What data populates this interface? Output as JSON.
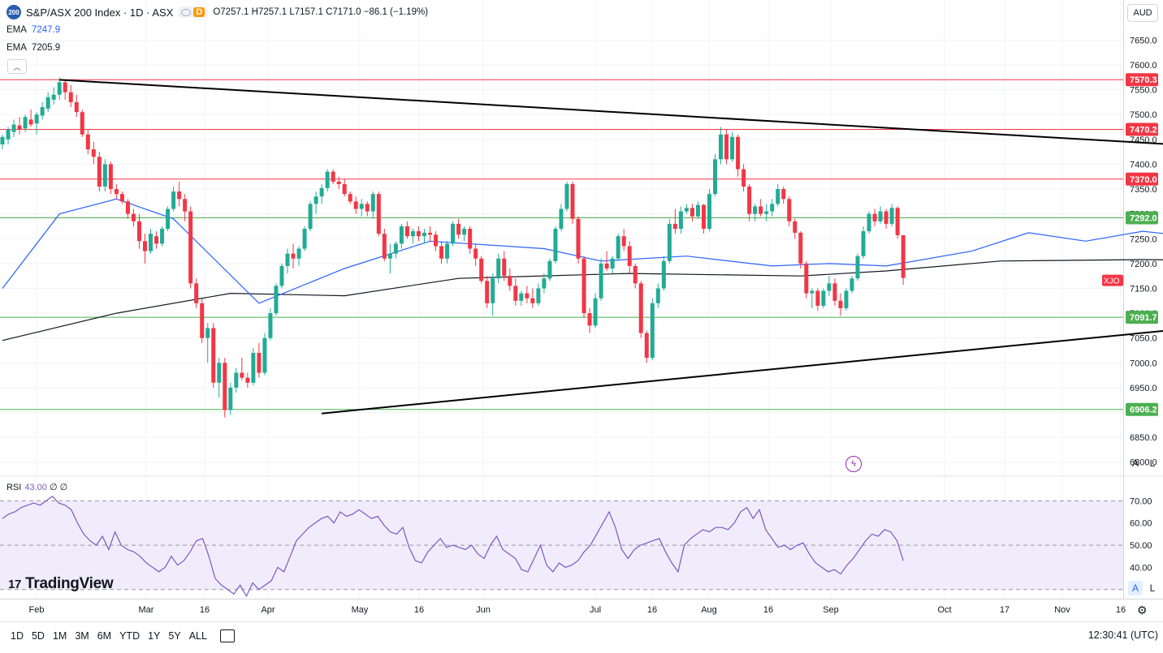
{
  "header": {
    "symbol_badge": "200",
    "title": "S&P/ASX 200 Index · 1D · ASX",
    "mode_badge": "D",
    "ohlc": "O7257.1 H7257.1 L7157.1 C7171.0 −86.1 (−1.19%)",
    "ema1_label": "EMA",
    "ema1_value": "7247.9",
    "ema2_label": "EMA",
    "ema2_value": "7205.9",
    "currency": "AUD"
  },
  "rsi": {
    "label": "RSI",
    "value": "43.00",
    "extra": "∅ ∅",
    "ticks": [
      "70.00",
      "60.00",
      "50.00",
      "40.00"
    ]
  },
  "scale_buttons": {
    "main_a": "A",
    "main_l": "L",
    "rsi_a": "A",
    "rsi_l": "L"
  },
  "ranges": [
    "1D",
    "5D",
    "1M",
    "3M",
    "6M",
    "YTD",
    "1Y",
    "5Y",
    "ALL"
  ],
  "clock": "12:30:41 (UTC)",
  "logo": "TradingView",
  "colors": {
    "up": "#22ab94",
    "down": "#f23645",
    "ema_fast": "#2962ff",
    "ema_slow": "#131722",
    "rsi": "#7e57c2",
    "support": "#4caf50",
    "resistance": "#f23645"
  },
  "chart_data": {
    "type": "candlestick",
    "symbol_tag": "XJO",
    "y_range": [
      6775,
      7685
    ],
    "y_ticks": [
      7650,
      7600,
      7550,
      7500,
      7450,
      7400,
      7350,
      7300,
      7250,
      7200,
      7150,
      7100,
      7050,
      7000,
      6950,
      6900,
      6850,
      6800
    ],
    "x_labels": [
      "Feb",
      "Mar",
      "16",
      "Apr",
      "May",
      "16",
      "Jun",
      "Jul",
      "16",
      "Aug",
      "16",
      "Sep",
      "Oct",
      "17",
      "Nov",
      "16"
    ],
    "horizontal_levels": [
      {
        "value": 7570.3,
        "label": "7570.3",
        "kind": "resistance"
      },
      {
        "value": 7470.2,
        "label": "7470.2",
        "kind": "resistance"
      },
      {
        "value": 7370.0,
        "label": "7370.0",
        "kind": "resistance"
      },
      {
        "value": 7292.0,
        "label": "7292.0",
        "kind": "support"
      },
      {
        "value": 7091.7,
        "label": "7091.7",
        "kind": "support"
      },
      {
        "value": 6906.2,
        "label": "6906.2",
        "kind": "support"
      }
    ],
    "trendlines": [
      {
        "name": "upper",
        "points": [
          [
            10,
            7570
          ],
          [
            232,
            7422
          ]
        ]
      },
      {
        "name": "lower",
        "points": [
          [
            56,
            6898
          ],
          [
            238,
            7103
          ]
        ]
      }
    ],
    "ema_fast": [
      [
        0,
        7150
      ],
      [
        10,
        7300
      ],
      [
        20,
        7330
      ],
      [
        30,
        7290
      ],
      [
        45,
        7120
      ],
      [
        60,
        7190
      ],
      [
        75,
        7245
      ],
      [
        95,
        7230
      ],
      [
        105,
        7205
      ],
      [
        120,
        7215
      ],
      [
        135,
        7195
      ],
      [
        145,
        7200
      ],
      [
        155,
        7195
      ],
      [
        170,
        7225
      ],
      [
        180,
        7262
      ],
      [
        190,
        7245
      ],
      [
        200,
        7265
      ],
      [
        212,
        7250
      ],
      [
        218,
        7248
      ]
    ],
    "ema_slow": [
      [
        0,
        7045
      ],
      [
        20,
        7100
      ],
      [
        40,
        7140
      ],
      [
        60,
        7135
      ],
      [
        80,
        7170
      ],
      [
        110,
        7180
      ],
      [
        140,
        7175
      ],
      [
        155,
        7185
      ],
      [
        175,
        7205
      ],
      [
        200,
        7208
      ],
      [
        218,
        7206
      ]
    ],
    "candles": [
      [
        7440,
        7460,
        7430,
        7455
      ],
      [
        7450,
        7475,
        7440,
        7470
      ],
      [
        7465,
        7490,
        7455,
        7480
      ],
      [
        7478,
        7495,
        7460,
        7470
      ],
      [
        7472,
        7500,
        7465,
        7495
      ],
      [
        7490,
        7510,
        7475,
        7480
      ],
      [
        7482,
        7505,
        7460,
        7500
      ],
      [
        7498,
        7525,
        7490,
        7515
      ],
      [
        7512,
        7545,
        7505,
        7535
      ],
      [
        7530,
        7555,
        7520,
        7540
      ],
      [
        7540,
        7575,
        7530,
        7565
      ],
      [
        7565,
        7570,
        7530,
        7545
      ],
      [
        7545,
        7560,
        7515,
        7525
      ],
      [
        7525,
        7540,
        7495,
        7505
      ],
      [
        7505,
        7510,
        7455,
        7460
      ],
      [
        7460,
        7470,
        7420,
        7430
      ],
      [
        7430,
        7445,
        7400,
        7415
      ],
      [
        7415,
        7425,
        7345,
        7355
      ],
      [
        7355,
        7410,
        7345,
        7400
      ],
      [
        7400,
        7405,
        7340,
        7350
      ],
      [
        7350,
        7360,
        7330,
        7340
      ],
      [
        7340,
        7345,
        7320,
        7325
      ],
      [
        7325,
        7330,
        7290,
        7300
      ],
      [
        7300,
        7310,
        7275,
        7285
      ],
      [
        7285,
        7300,
        7230,
        7245
      ],
      [
        7245,
        7260,
        7200,
        7225
      ],
      [
        7225,
        7270,
        7220,
        7260
      ],
      [
        7255,
        7265,
        7230,
        7240
      ],
      [
        7240,
        7275,
        7235,
        7270
      ],
      [
        7270,
        7315,
        7265,
        7310
      ],
      [
        7310,
        7355,
        7305,
        7345
      ],
      [
        7345,
        7365,
        7315,
        7330
      ],
      [
        7330,
        7340,
        7285,
        7305
      ],
      [
        7305,
        7315,
        7150,
        7160
      ],
      [
        7160,
        7170,
        7110,
        7120
      ],
      [
        7120,
        7130,
        7040,
        7050
      ],
      [
        7050,
        7080,
        7000,
        7070
      ],
      [
        7070,
        7080,
        6950,
        6960
      ],
      [
        6960,
        7010,
        6930,
        7000
      ],
      [
        7000,
        7010,
        6890,
        6905
      ],
      [
        6905,
        6960,
        6895,
        6950
      ],
      [
        6950,
        6990,
        6940,
        6980
      ],
      [
        6980,
        7010,
        6965,
        6970
      ],
      [
        6970,
        6980,
        6950,
        6960
      ],
      [
        6960,
        7030,
        6955,
        7020
      ],
      [
        7020,
        7040,
        6970,
        6980
      ],
      [
        6980,
        7060,
        6975,
        7050
      ],
      [
        7050,
        7110,
        7045,
        7100
      ],
      [
        7100,
        7160,
        7095,
        7155
      ],
      [
        7155,
        7200,
        7150,
        7195
      ],
      [
        7195,
        7230,
        7180,
        7220
      ],
      [
        7220,
        7240,
        7190,
        7210
      ],
      [
        7210,
        7235,
        7195,
        7230
      ],
      [
        7230,
        7275,
        7225,
        7270
      ],
      [
        7270,
        7325,
        7265,
        7320
      ],
      [
        7320,
        7345,
        7300,
        7335
      ],
      [
        7335,
        7360,
        7320,
        7352
      ],
      [
        7352,
        7390,
        7345,
        7385
      ],
      [
        7385,
        7390,
        7360,
        7365
      ],
      [
        7365,
        7375,
        7350,
        7360
      ],
      [
        7360,
        7370,
        7335,
        7340
      ],
      [
        7340,
        7345,
        7320,
        7325
      ],
      [
        7325,
        7335,
        7300,
        7310
      ],
      [
        7310,
        7330,
        7295,
        7320
      ],
      [
        7320,
        7325,
        7295,
        7305
      ],
      [
        7305,
        7345,
        7290,
        7340
      ],
      [
        7340,
        7345,
        7255,
        7260
      ],
      [
        7260,
        7270,
        7205,
        7210
      ],
      [
        7210,
        7240,
        7180,
        7220
      ],
      [
        7220,
        7245,
        7210,
        7240
      ],
      [
        7240,
        7280,
        7230,
        7275
      ],
      [
        7275,
        7285,
        7250,
        7255
      ],
      [
        7255,
        7270,
        7240,
        7265
      ],
      [
        7265,
        7275,
        7245,
        7255
      ],
      [
        7255,
        7270,
        7240,
        7262
      ],
      [
        7262,
        7275,
        7245,
        7258
      ],
      [
        7258,
        7265,
        7225,
        7235
      ],
      [
        7235,
        7245,
        7200,
        7210
      ],
      [
        7210,
        7245,
        7200,
        7240
      ],
      [
        7240,
        7285,
        7235,
        7280
      ],
      [
        7280,
        7290,
        7250,
        7258
      ],
      [
        7258,
        7275,
        7245,
        7270
      ],
      [
        7270,
        7275,
        7220,
        7230
      ],
      [
        7230,
        7240,
        7195,
        7210
      ],
      [
        7210,
        7215,
        7160,
        7165
      ],
      [
        7165,
        7175,
        7110,
        7120
      ],
      [
        7120,
        7180,
        7095,
        7170
      ],
      [
        7170,
        7220,
        7160,
        7210
      ],
      [
        7210,
        7225,
        7165,
        7175
      ],
      [
        7175,
        7190,
        7145,
        7155
      ],
      [
        7155,
        7170,
        7115,
        7125
      ],
      [
        7125,
        7145,
        7115,
        7140
      ],
      [
        7140,
        7155,
        7120,
        7130
      ],
      [
        7130,
        7150,
        7110,
        7120
      ],
      [
        7120,
        7160,
        7115,
        7150
      ],
      [
        7150,
        7180,
        7140,
        7170
      ],
      [
        7170,
        7210,
        7165,
        7205
      ],
      [
        7205,
        7275,
        7200,
        7270
      ],
      [
        7270,
        7320,
        7265,
        7310
      ],
      [
        7310,
        7365,
        7305,
        7360
      ],
      [
        7360,
        7365,
        7280,
        7290
      ],
      [
        7290,
        7295,
        7200,
        7210
      ],
      [
        7210,
        7215,
        7090,
        7100
      ],
      [
        7100,
        7110,
        7060,
        7075
      ],
      [
        7075,
        7140,
        7070,
        7130
      ],
      [
        7130,
        7210,
        7125,
        7200
      ],
      [
        7200,
        7225,
        7185,
        7190
      ],
      [
        7190,
        7215,
        7180,
        7210
      ],
      [
        7210,
        7260,
        7205,
        7255
      ],
      [
        7255,
        7270,
        7225,
        7235
      ],
      [
        7235,
        7245,
        7180,
        7195
      ],
      [
        7195,
        7200,
        7150,
        7160
      ],
      [
        7160,
        7165,
        7050,
        7060
      ],
      [
        7060,
        7065,
        7000,
        7010
      ],
      [
        7010,
        7130,
        7005,
        7120
      ],
      [
        7120,
        7160,
        7110,
        7150
      ],
      [
        7150,
        7215,
        7145,
        7205
      ],
      [
        7205,
        7290,
        7200,
        7280
      ],
      [
        7280,
        7310,
        7260,
        7270
      ],
      [
        7270,
        7315,
        7260,
        7305
      ],
      [
        7305,
        7320,
        7300,
        7312
      ],
      [
        7312,
        7320,
        7285,
        7295
      ],
      [
        7295,
        7325,
        7290,
        7318
      ],
      [
        7318,
        7320,
        7260,
        7270
      ],
      [
        7270,
        7350,
        7265,
        7340
      ],
      [
        7340,
        7420,
        7335,
        7410
      ],
      [
        7410,
        7475,
        7400,
        7460
      ],
      [
        7460,
        7470,
        7400,
        7410
      ],
      [
        7410,
        7465,
        7405,
        7455
      ],
      [
        7455,
        7460,
        7375,
        7390
      ],
      [
        7390,
        7400,
        7345,
        7355
      ],
      [
        7355,
        7360,
        7285,
        7300
      ],
      [
        7300,
        7320,
        7285,
        7315
      ],
      [
        7315,
        7330,
        7295,
        7300
      ],
      [
        7300,
        7320,
        7285,
        7305
      ],
      [
        7305,
        7330,
        7295,
        7320
      ],
      [
        7320,
        7360,
        7315,
        7350
      ],
      [
        7350,
        7355,
        7320,
        7330
      ],
      [
        7330,
        7335,
        7275,
        7285
      ],
      [
        7285,
        7290,
        7250,
        7262
      ],
      [
        7262,
        7265,
        7190,
        7200
      ],
      [
        7200,
        7205,
        7130,
        7140
      ],
      [
        7140,
        7150,
        7110,
        7145
      ],
      [
        7145,
        7150,
        7105,
        7115
      ],
      [
        7115,
        7150,
        7110,
        7145
      ],
      [
        7145,
        7175,
        7135,
        7160
      ],
      [
        7160,
        7170,
        7115,
        7125
      ],
      [
        7125,
        7140,
        7095,
        7110
      ],
      [
        7110,
        7150,
        7105,
        7145
      ],
      [
        7145,
        7175,
        7140,
        7170
      ],
      [
        7170,
        7220,
        7165,
        7215
      ],
      [
        7215,
        7275,
        7210,
        7265
      ],
      [
        7265,
        7305,
        7260,
        7300
      ],
      [
        7300,
        7310,
        7275,
        7285
      ],
      [
        7285,
        7315,
        7280,
        7305
      ],
      [
        7305,
        7310,
        7270,
        7280
      ],
      [
        7280,
        7320,
        7275,
        7312
      ],
      [
        7312,
        7315,
        7250,
        7257
      ],
      [
        7257,
        7257,
        7157,
        7171
      ]
    ],
    "rsi_series": [
      62,
      64,
      65,
      67,
      68,
      69,
      68,
      70,
      72,
      69,
      68,
      66,
      60,
      55,
      52,
      50,
      54,
      48,
      56,
      50,
      48,
      47,
      45,
      42,
      40,
      38,
      40,
      45,
      41,
      43,
      47,
      52,
      53,
      45,
      35,
      32,
      30,
      28,
      32,
      27,
      33,
      30,
      32,
      34,
      40,
      38,
      45,
      52,
      55,
      58,
      60,
      62,
      63,
      60,
      65,
      63,
      64,
      66,
      64,
      62,
      63,
      59,
      56,
      55,
      58,
      49,
      43,
      42,
      47,
      50,
      53,
      49,
      50,
      49,
      48,
      50,
      46,
      44,
      50,
      54,
      48,
      46,
      44,
      39,
      38,
      44,
      50,
      41,
      38,
      42,
      40,
      41,
      43,
      47,
      50,
      55,
      60,
      65,
      58,
      48,
      44,
      48,
      50,
      51,
      52,
      53,
      47,
      42,
      38,
      50,
      53,
      55,
      57,
      56,
      58,
      58,
      57,
      60,
      65,
      67,
      62,
      66,
      57,
      53,
      49,
      50,
      48,
      50,
      51,
      46,
      42,
      40,
      38,
      39,
      37,
      41,
      44,
      48,
      52,
      55,
      54,
      57,
      56,
      52,
      43
    ]
  }
}
